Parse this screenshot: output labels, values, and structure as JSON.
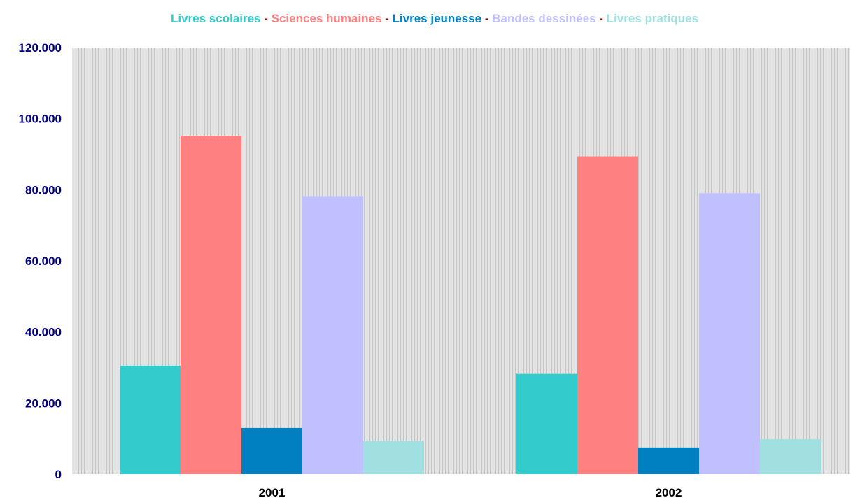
{
  "chart_data": {
    "type": "bar",
    "title": "",
    "xlabel": "",
    "ylabel": "",
    "categories": [
      "2001",
      "2002"
    ],
    "series": [
      {
        "name": "Livres scolaires",
        "color": "#33CCCC",
        "values": [
          30500,
          28200
        ]
      },
      {
        "name": "Sciences humaines",
        "color": "#FF8080",
        "values": [
          95200,
          89400
        ]
      },
      {
        "name": "Livres jeunesse",
        "color": "#0080C0",
        "values": [
          13000,
          7500
        ]
      },
      {
        "name": "Bandes dessinées",
        "color": "#C0C0FF",
        "values": [
          78200,
          79000
        ]
      },
      {
        "name": "Livres pratiques",
        "color": "#A0E0E0",
        "values": [
          9300,
          9800
        ]
      }
    ],
    "ylim": [
      0,
      120000
    ],
    "yticks": [
      0,
      20000,
      40000,
      60000,
      80000,
      100000,
      120000
    ],
    "ytick_labels": [
      "0",
      "20.000",
      "40.000",
      "60.000",
      "80.000",
      "100.000",
      "120.000"
    ],
    "legend_position": "top",
    "legend_separator": " - ",
    "legend_separator_color": "#800000",
    "plot_background": "striped-gray",
    "grid": false
  }
}
